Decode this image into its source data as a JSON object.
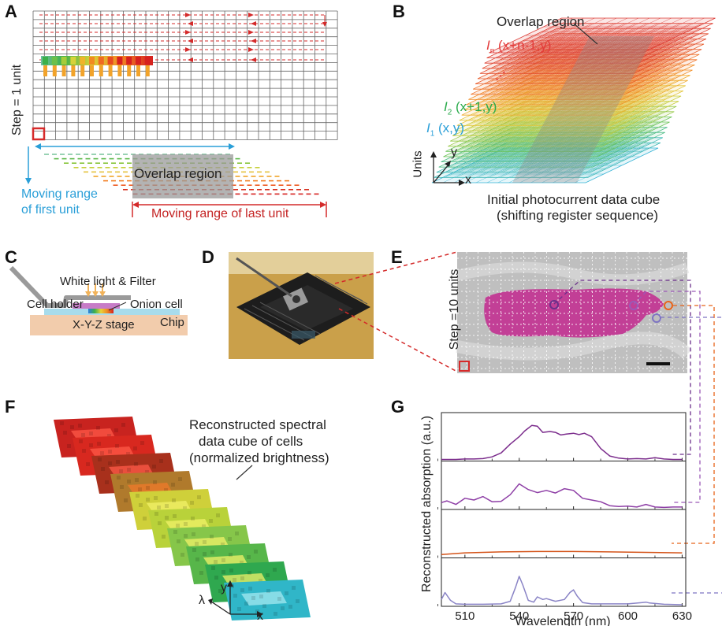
{
  "panels": {
    "a": "A",
    "b": "B",
    "c": "C",
    "d": "D",
    "e": "E",
    "f": "F",
    "g": "G"
  },
  "panel_a": {
    "step_label": "Step = 1 unit",
    "overlap_label": "Overlap region",
    "first_unit_label_1": "Moving range",
    "first_unit_label_2": "of first unit",
    "last_unit_label": "Moving range of last unit",
    "colors": {
      "first_unit": "#2a9fd8",
      "last_unit": "#d42a2a",
      "grid": "#555555"
    }
  },
  "panel_b": {
    "overlap_label": "Overlap region",
    "layer_n_sym": "I",
    "layer_n_sub": "n",
    "layer_n_coord": " (x+n-1,y)",
    "dots": "⋮",
    "layer_2_sym": "I",
    "layer_2_sub": "2",
    "layer_2_coord": " (x+1,y)",
    "layer_1_sym": "I",
    "layer_1_sub": "1",
    "layer_1_coord": " (x,y)",
    "axis_y": "y",
    "axis_x": "x",
    "axis_units": "Units",
    "caption_1": "Initial photocurrent data cube",
    "caption_2": "(shifting register sequence)",
    "colors": {
      "layer_n": "#e33b3b",
      "layer_2": "#2bab4c",
      "layer_1": "#2a9fd8"
    }
  },
  "panel_c": {
    "light_label": "White light & Filter",
    "holder_label": "Cell holder",
    "cell_label": "Onion cell",
    "chip_label": "Chip",
    "stage_label": "X-Y-Z stage"
  },
  "panel_e": {
    "step_label": "Step =10 units",
    "marker_colors": [
      "#6b2f8a",
      "#9b59b6",
      "#e8641a",
      "#7d74c2"
    ]
  },
  "panel_f": {
    "caption_1": "Reconstructed spectral",
    "caption_2": "data cube of cells",
    "caption_3": "(normalized brightness)",
    "axis_y": "y",
    "axis_lambda": "λ",
    "axis_x": "x",
    "slice_colors": [
      "#c8231f",
      "#d8281f",
      "#a8301c",
      "#b07a2c",
      "#cfd03a",
      "#b9d23a",
      "#86c64a",
      "#57b64a",
      "#2fa84f",
      "#30b6c8"
    ]
  },
  "chart_data": {
    "type": "line",
    "title": "",
    "xlabel": "Wavelength (nm)",
    "ylabel": "Reconstructed absorption (a.u.)",
    "xlim": [
      497,
      632
    ],
    "x_ticks": [
      510,
      540,
      570,
      600,
      630
    ],
    "x_tick_labels": [
      "510",
      "540",
      "570",
      "600",
      "630"
    ],
    "series": [
      {
        "color": "#7b2c8c",
        "x": [
          497,
          505,
          510,
          515,
          520,
          525,
          530,
          535,
          540,
          543,
          547,
          550,
          553,
          557,
          560,
          563,
          566,
          570,
          573,
          576,
          580,
          585,
          590,
          595,
          600,
          605,
          610,
          615,
          620,
          625,
          630
        ],
        "y": [
          0.0,
          0.0,
          0.01,
          0.01,
          0.02,
          0.06,
          0.15,
          0.35,
          0.52,
          0.65,
          0.78,
          0.76,
          0.62,
          0.64,
          0.62,
          0.56,
          0.58,
          0.6,
          0.57,
          0.6,
          0.52,
          0.25,
          0.08,
          0.03,
          0.01,
          0.02,
          0.01,
          0.04,
          0.01,
          0.0,
          0.0
        ]
      },
      {
        "color": "#8e3fa6",
        "x": [
          497,
          500,
          505,
          510,
          515,
          520,
          525,
          530,
          535,
          540,
          545,
          550,
          555,
          560,
          565,
          570,
          575,
          580,
          585,
          590,
          595,
          600,
          605,
          610,
          615,
          620,
          625,
          630
        ],
        "y": [
          0.12,
          0.16,
          0.08,
          0.22,
          0.18,
          0.26,
          0.14,
          0.15,
          0.3,
          0.55,
          0.42,
          0.35,
          0.4,
          0.34,
          0.44,
          0.4,
          0.22,
          0.18,
          0.14,
          0.05,
          0.03,
          0.04,
          0.02,
          0.08,
          0.02,
          0.01,
          0.02,
          0.02
        ]
      },
      {
        "color": "#d4541a",
        "x": [
          497,
          510,
          530,
          550,
          570,
          590,
          610,
          630
        ],
        "y": [
          0.04,
          0.08,
          0.1,
          0.11,
          0.11,
          0.1,
          0.09,
          0.08
        ]
      },
      {
        "color": "#8a84c6",
        "x": [
          497,
          499,
          502,
          505,
          510,
          520,
          530,
          535,
          538,
          540,
          542,
          545,
          548,
          550,
          553,
          555,
          560,
          565,
          568,
          570,
          572,
          575,
          580,
          590,
          600,
          608,
          610,
          612,
          620,
          630
        ],
        "y": [
          0.12,
          0.28,
          0.1,
          0.02,
          0.01,
          0.01,
          0.02,
          0.08,
          0.4,
          0.65,
          0.45,
          0.1,
          0.06,
          0.18,
          0.12,
          0.14,
          0.08,
          0.12,
          0.28,
          0.34,
          0.2,
          0.05,
          0.02,
          0.02,
          0.02,
          0.05,
          0.06,
          0.04,
          0.01,
          0.0
        ]
      }
    ]
  }
}
